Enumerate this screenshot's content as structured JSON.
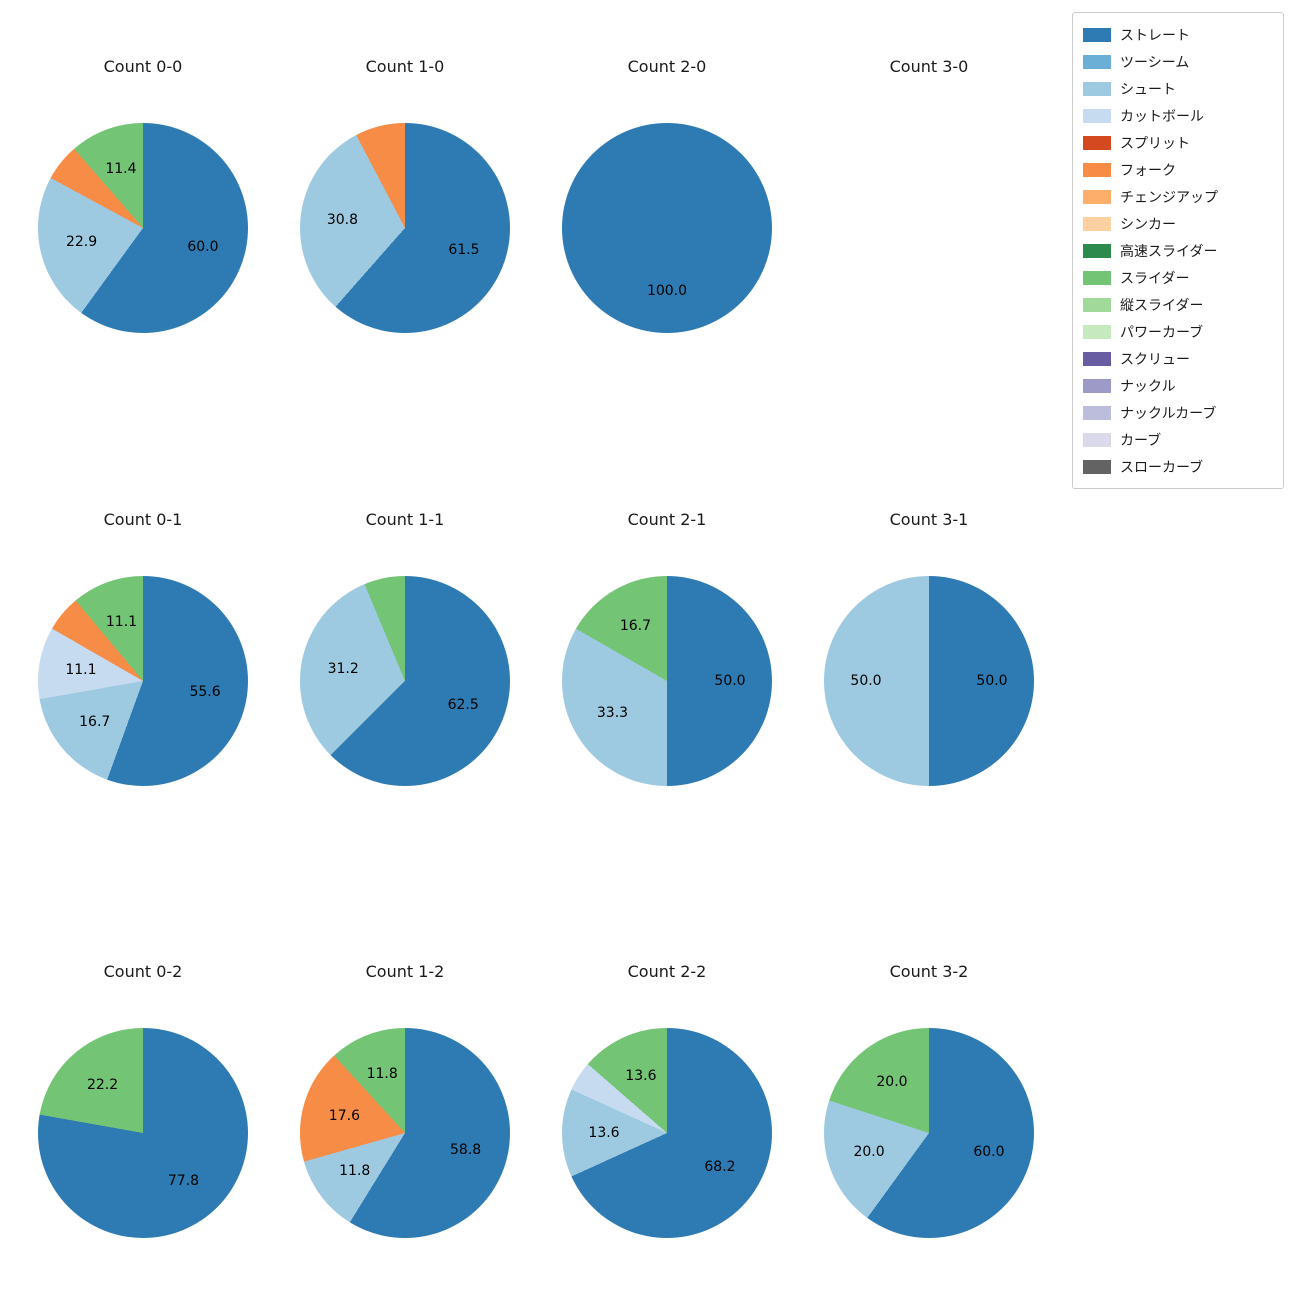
{
  "figure": {
    "background": "#ffffff",
    "text_color": "#1a1a1a"
  },
  "legend": {
    "position": "upper right",
    "items": [
      {
        "label": "ストレート",
        "color": "#2e7bb4"
      },
      {
        "label": "ツーシーム",
        "color": "#6baed6"
      },
      {
        "label": "シュート",
        "color": "#9ecae1"
      },
      {
        "label": "カットボール",
        "color": "#c6dbef"
      },
      {
        "label": "スプリット",
        "color": "#d4491f"
      },
      {
        "label": "フォーク",
        "color": "#f68c45"
      },
      {
        "label": "チェンジアップ",
        "color": "#fdae6b"
      },
      {
        "label": "シンカー",
        "color": "#fdd0a2"
      },
      {
        "label": "高速スライダー",
        "color": "#2c8a4e"
      },
      {
        "label": "スライダー",
        "color": "#74c476"
      },
      {
        "label": "縦スライダー",
        "color": "#a1d99b"
      },
      {
        "label": "パワーカーブ",
        "color": "#c7e9c0"
      },
      {
        "label": "スクリュー",
        "color": "#685da3"
      },
      {
        "label": "ナックル",
        "color": "#9e9ac8"
      },
      {
        "label": "ナックルカーブ",
        "color": "#bcbddc"
      },
      {
        "label": "カーブ",
        "color": "#dadaeb"
      },
      {
        "label": "スローカーブ",
        "color": "#636363"
      }
    ]
  },
  "chart_data": {
    "type": "pie",
    "layout": {
      "rows": 3,
      "cols": 4,
      "start_angle": "top",
      "direction": "clockwise",
      "label_radius_fraction": 0.6,
      "legend_position": "upper right"
    },
    "charts": [
      {
        "title": "Count 0-0",
        "slices": [
          {
            "pitch": "ストレート",
            "value": 60.0,
            "label": "60.0"
          },
          {
            "pitch": "シュート",
            "value": 22.9,
            "label": "22.9"
          },
          {
            "pitch": "フォーク",
            "value": 5.7,
            "label": null
          },
          {
            "pitch": "スライダー",
            "value": 11.4,
            "label": "11.4"
          }
        ]
      },
      {
        "title": "Count 1-0",
        "slices": [
          {
            "pitch": "ストレート",
            "value": 61.5,
            "label": "61.5"
          },
          {
            "pitch": "シュート",
            "value": 30.8,
            "label": "30.8"
          },
          {
            "pitch": "フォーク",
            "value": 7.7,
            "label": null
          }
        ]
      },
      {
        "title": "Count 2-0",
        "slices": [
          {
            "pitch": "ストレート",
            "value": 100.0,
            "label": "100.0"
          }
        ]
      },
      {
        "title": "Count 3-0",
        "slices": []
      },
      {
        "title": "Count 0-1",
        "slices": [
          {
            "pitch": "ストレート",
            "value": 55.6,
            "label": "55.6"
          },
          {
            "pitch": "シュート",
            "value": 16.7,
            "label": "16.7"
          },
          {
            "pitch": "カットボール",
            "value": 11.1,
            "label": "11.1"
          },
          {
            "pitch": "フォーク",
            "value": 5.6,
            "label": null
          },
          {
            "pitch": "スライダー",
            "value": 11.1,
            "label": "11.1"
          }
        ]
      },
      {
        "title": "Count 1-1",
        "slices": [
          {
            "pitch": "ストレート",
            "value": 62.5,
            "label": "62.5"
          },
          {
            "pitch": "シュート",
            "value": 31.2,
            "label": "31.2"
          },
          {
            "pitch": "スライダー",
            "value": 6.3,
            "label": null
          }
        ]
      },
      {
        "title": "Count 2-1",
        "slices": [
          {
            "pitch": "ストレート",
            "value": 50.0,
            "label": "50.0"
          },
          {
            "pitch": "シュート",
            "value": 33.3,
            "label": "33.3"
          },
          {
            "pitch": "スライダー",
            "value": 16.7,
            "label": "16.7"
          }
        ]
      },
      {
        "title": "Count 3-1",
        "slices": [
          {
            "pitch": "ストレート",
            "value": 50.0,
            "label": "50.0"
          },
          {
            "pitch": "シュート",
            "value": 50.0,
            "label": "50.0"
          }
        ]
      },
      {
        "title": "Count 0-2",
        "slices": [
          {
            "pitch": "ストレート",
            "value": 77.8,
            "label": "77.8"
          },
          {
            "pitch": "スライダー",
            "value": 22.2,
            "label": "22.2"
          }
        ]
      },
      {
        "title": "Count 1-2",
        "slices": [
          {
            "pitch": "ストレート",
            "value": 58.8,
            "label": "58.8"
          },
          {
            "pitch": "シュート",
            "value": 11.8,
            "label": "11.8"
          },
          {
            "pitch": "フォーク",
            "value": 17.6,
            "label": "17.6"
          },
          {
            "pitch": "スライダー",
            "value": 11.8,
            "label": "11.8"
          }
        ]
      },
      {
        "title": "Count 2-2",
        "slices": [
          {
            "pitch": "ストレート",
            "value": 68.2,
            "label": "68.2"
          },
          {
            "pitch": "シュート",
            "value": 13.6,
            "label": "13.6"
          },
          {
            "pitch": "カットボール",
            "value": 4.6,
            "label": null
          },
          {
            "pitch": "スライダー",
            "value": 13.6,
            "label": "13.6"
          }
        ]
      },
      {
        "title": "Count 3-2",
        "slices": [
          {
            "pitch": "ストレート",
            "value": 60.0,
            "label": "60.0"
          },
          {
            "pitch": "シュート",
            "value": 20.0,
            "label": "20.0"
          },
          {
            "pitch": "スライダー",
            "value": 20.0,
            "label": "20.0"
          }
        ]
      }
    ]
  }
}
